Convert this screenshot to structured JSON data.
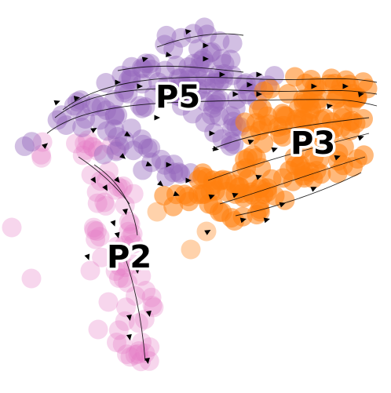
{
  "clusters": [
    {
      "id": "p5",
      "label": "P5",
      "color": "#9467bd"
    },
    {
      "id": "p3",
      "label": "P3",
      "color": "#ff7f0e"
    },
    {
      "id": "p2",
      "label": "P2",
      "color": "#e377c2"
    }
  ]
}
